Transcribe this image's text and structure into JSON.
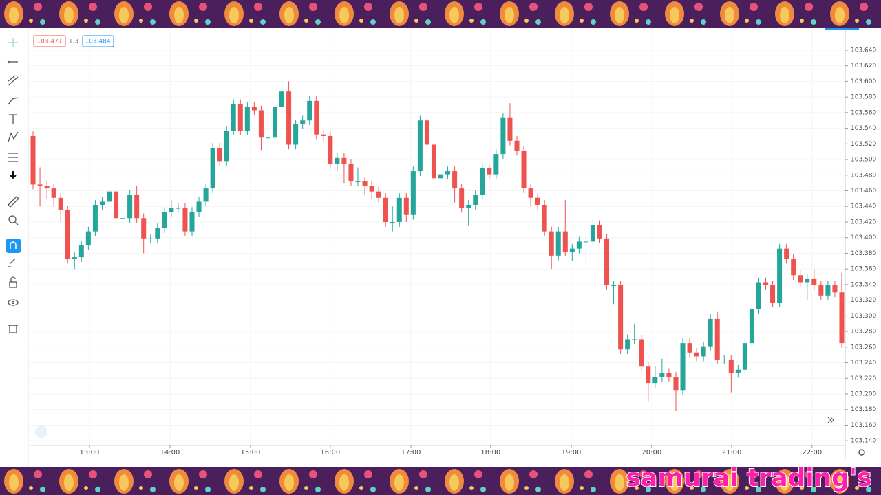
{
  "branding": "samurai trading's",
  "chart_data": {
    "type": "candlestick",
    "quote": {
      "sell": "103.471",
      "spread": "1.3",
      "buy": "103.484"
    },
    "up_color": "#26a69a",
    "down_color": "#ef5350",
    "grid": true,
    "open": [
      103.53,
      103.468,
      103.466,
      103.463,
      103.451,
      103.435,
      103.373,
      103.375,
      103.39,
      103.408,
      103.442,
      103.446,
      103.459,
      103.425,
      103.425,
      103.455,
      103.425,
      103.399,
      103.399,
      103.412,
      103.433,
      103.438,
      103.438,
      103.408,
      103.433,
      103.446,
      103.463,
      103.515,
      103.498,
      103.537,
      103.571,
      103.537,
      103.567,
      103.563,
      103.528,
      103.528,
      103.567,
      103.587,
      103.519,
      103.545,
      103.55,
      103.575,
      103.532,
      103.53,
      103.494,
      103.502,
      103.494,
      103.472,
      103.472,
      103.466,
      103.459,
      103.451,
      103.42,
      103.42,
      103.451,
      103.429,
      103.485,
      103.55,
      103.519,
      103.476,
      103.481,
      103.485,
      103.463,
      103.438,
      103.442,
      103.455,
      103.489,
      103.481,
      103.507,
      103.554,
      103.524,
      103.511,
      103.463,
      103.451,
      103.442,
      103.408,
      103.377,
      103.408,
      103.382,
      103.386,
      103.395,
      103.395,
      103.416,
      103.399,
      103.339,
      103.339,
      103.257,
      103.27,
      103.27,
      103.235,
      103.214,
      103.222,
      103.227,
      103.222,
      103.205,
      103.265,
      103.253,
      103.248,
      103.261,
      103.296,
      103.244,
      103.244,
      103.227,
      103.231,
      103.265,
      103.309,
      103.343,
      103.339,
      103.317,
      103.386,
      103.373,
      103.352,
      103.343,
      103.347,
      103.339,
      103.326,
      103.339,
      103.33
    ],
    "high": [
      103.536,
      103.49,
      103.472,
      103.469,
      103.457,
      103.441,
      103.381,
      103.396,
      103.414,
      103.448,
      103.452,
      103.478,
      103.465,
      103.431,
      103.461,
      103.466,
      103.431,
      103.405,
      103.418,
      103.439,
      103.448,
      103.444,
      103.444,
      103.439,
      103.452,
      103.469,
      103.521,
      103.521,
      103.543,
      103.577,
      103.577,
      103.573,
      103.573,
      103.569,
      103.534,
      103.573,
      103.603,
      103.6,
      103.551,
      103.556,
      103.581,
      103.581,
      103.538,
      103.536,
      103.508,
      103.508,
      103.5,
      103.49,
      103.478,
      103.472,
      103.465,
      103.457,
      103.44,
      103.457,
      103.457,
      103.491,
      103.556,
      103.556,
      103.525,
      103.487,
      103.491,
      103.491,
      103.469,
      103.448,
      103.461,
      103.495,
      103.495,
      103.513,
      103.56,
      103.572,
      103.53,
      103.517,
      103.469,
      103.457,
      103.448,
      103.414,
      103.414,
      103.448,
      103.392,
      103.401,
      103.401,
      103.422,
      103.422,
      103.405,
      103.345,
      103.345,
      103.276,
      103.29,
      103.276,
      103.241,
      103.236,
      103.245,
      103.233,
      103.228,
      103.271,
      103.271,
      103.259,
      103.267,
      103.302,
      103.305,
      103.25,
      103.25,
      103.237,
      103.271,
      103.315,
      103.349,
      103.349,
      103.345,
      103.392,
      103.392,
      103.379,
      103.358,
      103.353,
      103.36,
      103.345,
      103.345,
      103.345,
      103.355
    ],
    "low": [
      103.462,
      103.44,
      103.45,
      103.44,
      103.42,
      103.367,
      103.36,
      103.369,
      103.384,
      103.402,
      103.436,
      103.44,
      103.419,
      103.415,
      103.419,
      103.419,
      103.38,
      103.393,
      103.393,
      103.406,
      103.427,
      103.432,
      103.402,
      103.402,
      103.427,
      103.44,
      103.457,
      103.492,
      103.492,
      103.531,
      103.531,
      103.531,
      103.557,
      103.512,
      103.518,
      103.522,
      103.561,
      103.513,
      103.513,
      103.539,
      103.544,
      103.526,
      103.522,
      103.488,
      103.485,
      103.47,
      103.466,
      103.466,
      103.455,
      103.45,
      103.445,
      103.414,
      103.408,
      103.414,
      103.42,
      103.423,
      103.479,
      103.513,
      103.46,
      103.47,
      103.475,
      103.445,
      103.432,
      103.415,
      103.436,
      103.449,
      103.475,
      103.475,
      103.501,
      103.518,
      103.505,
      103.457,
      103.44,
      103.436,
      103.402,
      103.36,
      103.371,
      103.376,
      103.37,
      103.38,
      103.365,
      103.389,
      103.393,
      103.333,
      103.315,
      103.251,
      103.251,
      103.264,
      103.229,
      103.19,
      103.208,
      103.216,
      103.216,
      103.178,
      103.199,
      103.247,
      103.242,
      103.242,
      103.255,
      103.238,
      103.238,
      103.202,
      103.221,
      103.225,
      103.259,
      103.303,
      103.333,
      103.311,
      103.311,
      103.367,
      103.346,
      103.337,
      103.32,
      103.333,
      103.32,
      103.32,
      103.324,
      103.259
    ],
    "close": [
      103.468,
      103.466,
      103.463,
      103.451,
      103.435,
      103.373,
      103.375,
      103.39,
      103.408,
      103.442,
      103.446,
      103.459,
      103.425,
      103.425,
      103.455,
      103.425,
      103.399,
      103.399,
      103.412,
      103.433,
      103.438,
      103.438,
      103.408,
      103.433,
      103.446,
      103.463,
      103.515,
      103.498,
      103.537,
      103.571,
      103.537,
      103.567,
      103.563,
      103.528,
      103.528,
      103.567,
      103.587,
      103.519,
      103.545,
      103.55,
      103.575,
      103.532,
      103.53,
      103.494,
      103.502,
      103.494,
      103.472,
      103.472,
      103.466,
      103.459,
      103.451,
      103.42,
      103.42,
      103.451,
      103.429,
      103.485,
      103.55,
      103.519,
      103.476,
      103.481,
      103.485,
      103.463,
      103.438,
      103.442,
      103.455,
      103.489,
      103.481,
      103.507,
      103.554,
      103.524,
      103.511,
      103.463,
      103.451,
      103.442,
      103.408,
      103.377,
      103.408,
      103.382,
      103.386,
      103.395,
      103.395,
      103.416,
      103.399,
      103.339,
      103.339,
      103.257,
      103.27,
      103.27,
      103.235,
      103.214,
      103.222,
      103.227,
      103.222,
      103.205,
      103.265,
      103.253,
      103.248,
      103.261,
      103.296,
      103.244,
      103.244,
      103.227,
      103.231,
      103.265,
      103.309,
      103.343,
      103.339,
      103.317,
      103.386,
      103.373,
      103.352,
      103.343,
      103.347,
      103.339,
      103.326,
      103.339,
      103.33,
      103.265
    ],
    "xlim": [
      -0.5,
      117.5
    ],
    "xticks": [
      {
        "value": 8.16,
        "label": "13:00"
      },
      {
        "value": 19.81,
        "label": "14:00"
      },
      {
        "value": 31.46,
        "label": "15:00"
      },
      {
        "value": 43.0,
        "label": "16:00"
      },
      {
        "value": 54.67,
        "label": "17:00"
      },
      {
        "value": 66.2,
        "label": "18:00"
      },
      {
        "value": 77.87,
        "label": "19:00"
      },
      {
        "value": 89.5,
        "label": "20:00"
      },
      {
        "value": 101.07,
        "label": "21:00"
      },
      {
        "value": 112.7,
        "label": "22:00"
      }
    ],
    "ylim": [
      103.134,
      103.669
    ],
    "yticks": [
      {
        "value": 103.64,
        "label": "103.640"
      },
      {
        "value": 103.62,
        "label": "103.620"
      },
      {
        "value": 103.6,
        "label": "103.600"
      },
      {
        "value": 103.58,
        "label": "103.580"
      },
      {
        "value": 103.56,
        "label": "103.560"
      },
      {
        "value": 103.54,
        "label": "103.540"
      },
      {
        "value": 103.52,
        "label": "103.520"
      },
      {
        "value": 103.5,
        "label": "103.500"
      },
      {
        "value": 103.48,
        "label": "103.480"
      },
      {
        "value": 103.46,
        "label": "103.460"
      },
      {
        "value": 103.44,
        "label": "103.440"
      },
      {
        "value": 103.42,
        "label": "103.420"
      },
      {
        "value": 103.4,
        "label": "103.400"
      },
      {
        "value": 103.38,
        "label": "103.380"
      },
      {
        "value": 103.36,
        "label": "103.360"
      },
      {
        "value": 103.34,
        "label": "103.340"
      },
      {
        "value": 103.32,
        "label": "103.320"
      },
      {
        "value": 103.3,
        "label": "103.300"
      },
      {
        "value": 103.28,
        "label": "103.280"
      },
      {
        "value": 103.26,
        "label": "103.260"
      },
      {
        "value": 103.24,
        "label": "103.240"
      },
      {
        "value": 103.22,
        "label": "103.220"
      },
      {
        "value": 103.2,
        "label": "103.200"
      },
      {
        "value": 103.18,
        "label": "103.180"
      },
      {
        "value": 103.16,
        "label": "103.160"
      },
      {
        "value": 103.14,
        "label": "103.140"
      }
    ]
  }
}
